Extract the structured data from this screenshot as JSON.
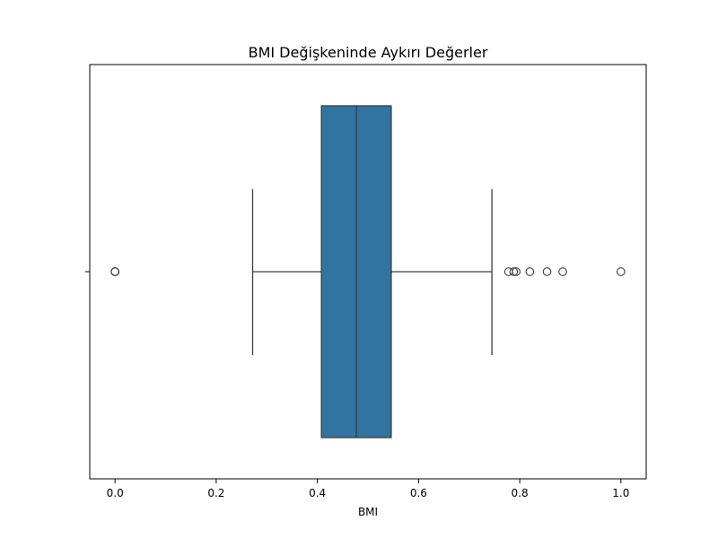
{
  "chart_data": {
    "type": "boxplot",
    "orientation": "horizontal",
    "title": "BMI Değişkeninde Aykırı Değerler",
    "xlabel": "BMI",
    "ylabel": "",
    "xlim": [
      -0.05,
      1.05
    ],
    "xticks": [
      {
        "value": 0.0,
        "label": "0.0"
      },
      {
        "value": 0.2,
        "label": "0.2"
      },
      {
        "value": 0.4,
        "label": "0.4"
      },
      {
        "value": 0.6,
        "label": "0.6"
      },
      {
        "value": 0.8,
        "label": "0.8"
      },
      {
        "value": 1.0,
        "label": "1.0"
      }
    ],
    "box": {
      "whisker_low": 0.272,
      "q1": 0.408,
      "median": 0.477,
      "q3": 0.546,
      "whisker_high": 0.745
    },
    "outliers": [
      0.0,
      0.0,
      0.0,
      0.778,
      0.788,
      0.793,
      0.82,
      0.854,
      0.885,
      1.0
    ],
    "grid": false,
    "box_color": "#3274a1",
    "line_color": "#3d3d3d"
  }
}
